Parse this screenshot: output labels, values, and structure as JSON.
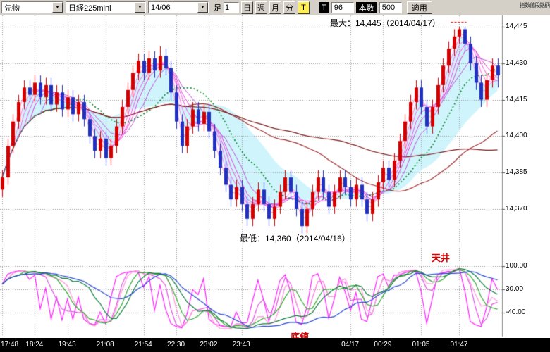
{
  "toolbar": {
    "category_select": "先物",
    "symbol_select": "日経225mini",
    "contract_select": "14/06",
    "interval_label": "足",
    "interval_value": "1",
    "buttons": {
      "day": "日",
      "week": "週",
      "month": "月",
      "minute": "分",
      "tick": "T"
    },
    "tick_label": "T",
    "tick_value": "96",
    "bars_label": "本数",
    "bars_value": "500",
    "apply_button": "適用",
    "corner_text": "指数値段銘柄"
  },
  "chart": {
    "annotations": {
      "max": "最大：14,445（2014/04/17）",
      "min": "最低：14,360（2014/04/16）",
      "ceiling": "天井",
      "bottom": "底値"
    },
    "y_ticks": [
      "14,445",
      "14,430",
      "14,415",
      "14,400",
      "14,385",
      "14,370"
    ],
    "osc_ticks": [
      "100.00",
      "30.00",
      "-40.00"
    ]
  },
  "chart_data": {
    "type": "candlestick",
    "y_axis": {
      "ticks": [
        14445,
        14430,
        14415,
        14400,
        14385,
        14370
      ]
    },
    "x_labels": [
      {
        "label": "17:48",
        "index": 0
      },
      {
        "label": "18:24",
        "index": 6
      },
      {
        "label": "19:43",
        "index": 12
      },
      {
        "label": "21:08",
        "index": 19
      },
      {
        "label": "21:54",
        "index": 26
      },
      {
        "label": "22:30",
        "index": 32
      },
      {
        "label": "23:02",
        "index": 38
      },
      {
        "label": "23:43",
        "index": 44
      },
      {
        "label": "04/17",
        "index": 64
      },
      {
        "label": "00:29",
        "index": 70
      },
      {
        "label": "01:05",
        "index": 77
      },
      {
        "label": "01:47",
        "index": 84
      }
    ],
    "annotation_values": {
      "max_value": 14445,
      "max_date": "2014/04/17",
      "min_value": 14360,
      "min_date": "2014/04/16"
    },
    "up_color": "#d40000",
    "down_color": "#2030c0",
    "candles": [
      [
        14378,
        14386,
        14375,
        14383
      ],
      [
        14383,
        14399,
        14380,
        14396
      ],
      [
        14396,
        14409,
        14393,
        14406
      ],
      [
        14406,
        14417,
        14403,
        14414
      ],
      [
        14414,
        14423,
        14411,
        14420
      ],
      [
        14420,
        14423,
        14414,
        14417
      ],
      [
        14417,
        14425,
        14414,
        14422
      ],
      [
        14422,
        14425,
        14413,
        14416
      ],
      [
        14416,
        14424,
        14413,
        14421
      ],
      [
        14421,
        14424,
        14410,
        14413
      ],
      [
        14413,
        14421,
        14410,
        14418
      ],
      [
        14418,
        14421,
        14408,
        14411
      ],
      [
        14411,
        14419,
        14408,
        14416
      ],
      [
        14416,
        14419,
        14406,
        14409
      ],
      [
        14409,
        14417,
        14406,
        14414
      ],
      [
        14414,
        14417,
        14404,
        14407
      ],
      [
        14407,
        14410,
        14397,
        14400
      ],
      [
        14400,
        14403,
        14391,
        14394
      ],
      [
        14394,
        14402,
        14391,
        14399
      ],
      [
        14399,
        14402,
        14388,
        14391
      ],
      [
        14391,
        14399,
        14388,
        14396
      ],
      [
        14396,
        14407,
        14393,
        14404
      ],
      [
        14404,
        14415,
        14401,
        14412
      ],
      [
        14412,
        14422,
        14409,
        14419
      ],
      [
        14419,
        14429,
        14416,
        14426
      ],
      [
        14426,
        14434,
        14423,
        14431
      ],
      [
        14431,
        14434,
        14423,
        14426
      ],
      [
        14426,
        14435,
        14423,
        14432
      ],
      [
        14432,
        14435,
        14424,
        14427
      ],
      [
        14427,
        14437,
        14424,
        14433
      ],
      [
        14433,
        14436,
        14425,
        14428
      ],
      [
        14428,
        14431,
        14415,
        14418
      ],
      [
        14418,
        14421,
        14403,
        14406
      ],
      [
        14406,
        14409,
        14393,
        14396
      ],
      [
        14396,
        14407,
        14393,
        14404
      ],
      [
        14404,
        14414,
        14401,
        14411
      ],
      [
        14411,
        14414,
        14402,
        14405
      ],
      [
        14405,
        14413,
        14402,
        14410
      ],
      [
        14410,
        14413,
        14399,
        14402
      ],
      [
        14402,
        14405,
        14391,
        14394
      ],
      [
        14394,
        14397,
        14384,
        14387
      ],
      [
        14387,
        14390,
        14377,
        14380
      ],
      [
        14380,
        14383,
        14371,
        14374
      ],
      [
        14374,
        14382,
        14371,
        14379
      ],
      [
        14379,
        14382,
        14369,
        14372
      ],
      [
        14372,
        14375,
        14363,
        14366
      ],
      [
        14366,
        14375,
        14363,
        14372
      ],
      [
        14372,
        14381,
        14369,
        14378
      ],
      [
        14378,
        14381,
        14369,
        14372
      ],
      [
        14372,
        14375,
        14363,
        14366
      ],
      [
        14366,
        14374,
        14363,
        14371
      ],
      [
        14371,
        14380,
        14368,
        14377
      ],
      [
        14377,
        14386,
        14374,
        14383
      ],
      [
        14383,
        14386,
        14374,
        14377
      ],
      [
        14377,
        14380,
        14367,
        14370
      ],
      [
        14370,
        14373,
        14360,
        14363
      ],
      [
        14363,
        14373,
        14360,
        14370
      ],
      [
        14370,
        14380,
        14367,
        14377
      ],
      [
        14377,
        14386,
        14374,
        14383
      ],
      [
        14383,
        14386,
        14374,
        14377
      ],
      [
        14377,
        14380,
        14368,
        14371
      ],
      [
        14371,
        14380,
        14368,
        14377
      ],
      [
        14377,
        14386,
        14374,
        14383
      ],
      [
        14383,
        14386,
        14376,
        14379
      ],
      [
        14379,
        14382,
        14371,
        14374
      ],
      [
        14374,
        14383,
        14371,
        14380
      ],
      [
        14380,
        14383,
        14371,
        14374
      ],
      [
        14374,
        14377,
        14365,
        14368
      ],
      [
        14368,
        14377,
        14365,
        14374
      ],
      [
        14374,
        14384,
        14371,
        14381
      ],
      [
        14381,
        14390,
        14378,
        14387
      ],
      [
        14387,
        14390,
        14379,
        14382
      ],
      [
        14382,
        14393,
        14379,
        14390
      ],
      [
        14390,
        14401,
        14387,
        14398
      ],
      [
        14398,
        14409,
        14395,
        14406
      ],
      [
        14406,
        14417,
        14403,
        14414
      ],
      [
        14414,
        14423,
        14411,
        14420
      ],
      [
        14420,
        14423,
        14409,
        14412
      ],
      [
        14412,
        14415,
        14401,
        14404
      ],
      [
        14404,
        14415,
        14401,
        14412
      ],
      [
        14412,
        14424,
        14409,
        14421
      ],
      [
        14421,
        14432,
        14418,
        14429
      ],
      [
        14429,
        14439,
        14426,
        14436
      ],
      [
        14436,
        14444,
        14433,
        14441
      ],
      [
        14441,
        14445,
        14438,
        14444
      ],
      [
        14444,
        14445,
        14435,
        14438
      ],
      [
        14438,
        14441,
        14427,
        14430
      ],
      [
        14430,
        14433,
        14419,
        14422
      ],
      [
        14422,
        14425,
        14412,
        14415
      ],
      [
        14415,
        14426,
        14412,
        14423
      ],
      [
        14423,
        14432,
        14420,
        14429
      ],
      [
        14429,
        14432,
        14420,
        14425
      ]
    ],
    "overlays": {
      "fast_band": {
        "periods": [
          2,
          3,
          4,
          5,
          6,
          8
        ],
        "colors": [
          "#ff9ad0",
          "#ff80dd",
          "#ff66e0",
          "#f44fe2",
          "#e03fd8",
          "#c050d8"
        ]
      },
      "signal": {
        "period": 13,
        "color": "#008822"
      },
      "slow": [
        {
          "period": 35,
          "color": "#a03030"
        },
        {
          "period": 60,
          "color": "#7a1a1a"
        }
      ],
      "cloud_periods": [
        3,
        21
      ],
      "cloud_color": "rgba(170,235,250,0.55)"
    },
    "oscillator": {
      "ticks": [
        100,
        30,
        -40
      ],
      "lines": [
        {
          "period": 4,
          "smooth": 1,
          "color": "#ff22ff"
        },
        {
          "period": 7,
          "smooth": 2,
          "color": "#e055e0"
        },
        {
          "period": 11,
          "smooth": 2,
          "color": "#ff99dd"
        },
        {
          "period": 9,
          "smooth": 4,
          "color": "#33aa33"
        },
        {
          "period": 16,
          "smooth": 5,
          "color": "#0a7a3a"
        },
        {
          "period": 24,
          "smooth": 8,
          "color": "#2b4bd0"
        }
      ]
    }
  }
}
